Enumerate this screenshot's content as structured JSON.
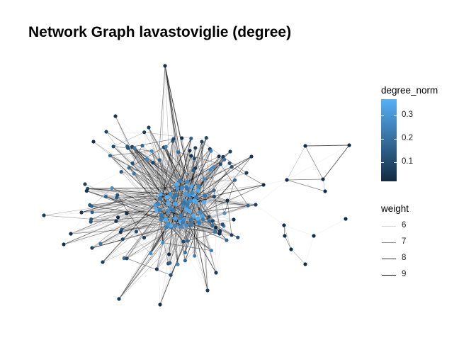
{
  "title": "Network Graph lavastoviglie (degree)",
  "legend_color": {
    "title": "degree_norm",
    "ticks": [
      {
        "label": "0.3",
        "value": 0.3
      },
      {
        "label": "0.2",
        "value": 0.2
      },
      {
        "label": "0.1",
        "value": 0.1
      }
    ],
    "range": [
      0.02,
      0.37
    ],
    "low_color": "#132b43",
    "high_color": "#56b1f7"
  },
  "legend_weight": {
    "title": "weight",
    "entries": [
      {
        "label": "6",
        "value": 6,
        "color": "#d4d4d4"
      },
      {
        "label": "7",
        "value": 7,
        "color": "#8c8c8c"
      },
      {
        "label": "8",
        "value": 8,
        "color": "#404040"
      },
      {
        "label": "9",
        "value": 9,
        "color": "#000000"
      }
    ]
  },
  "colors": {
    "node_dark": "#132b43",
    "node_light": "#56b1f7",
    "background": "#ffffff"
  }
}
